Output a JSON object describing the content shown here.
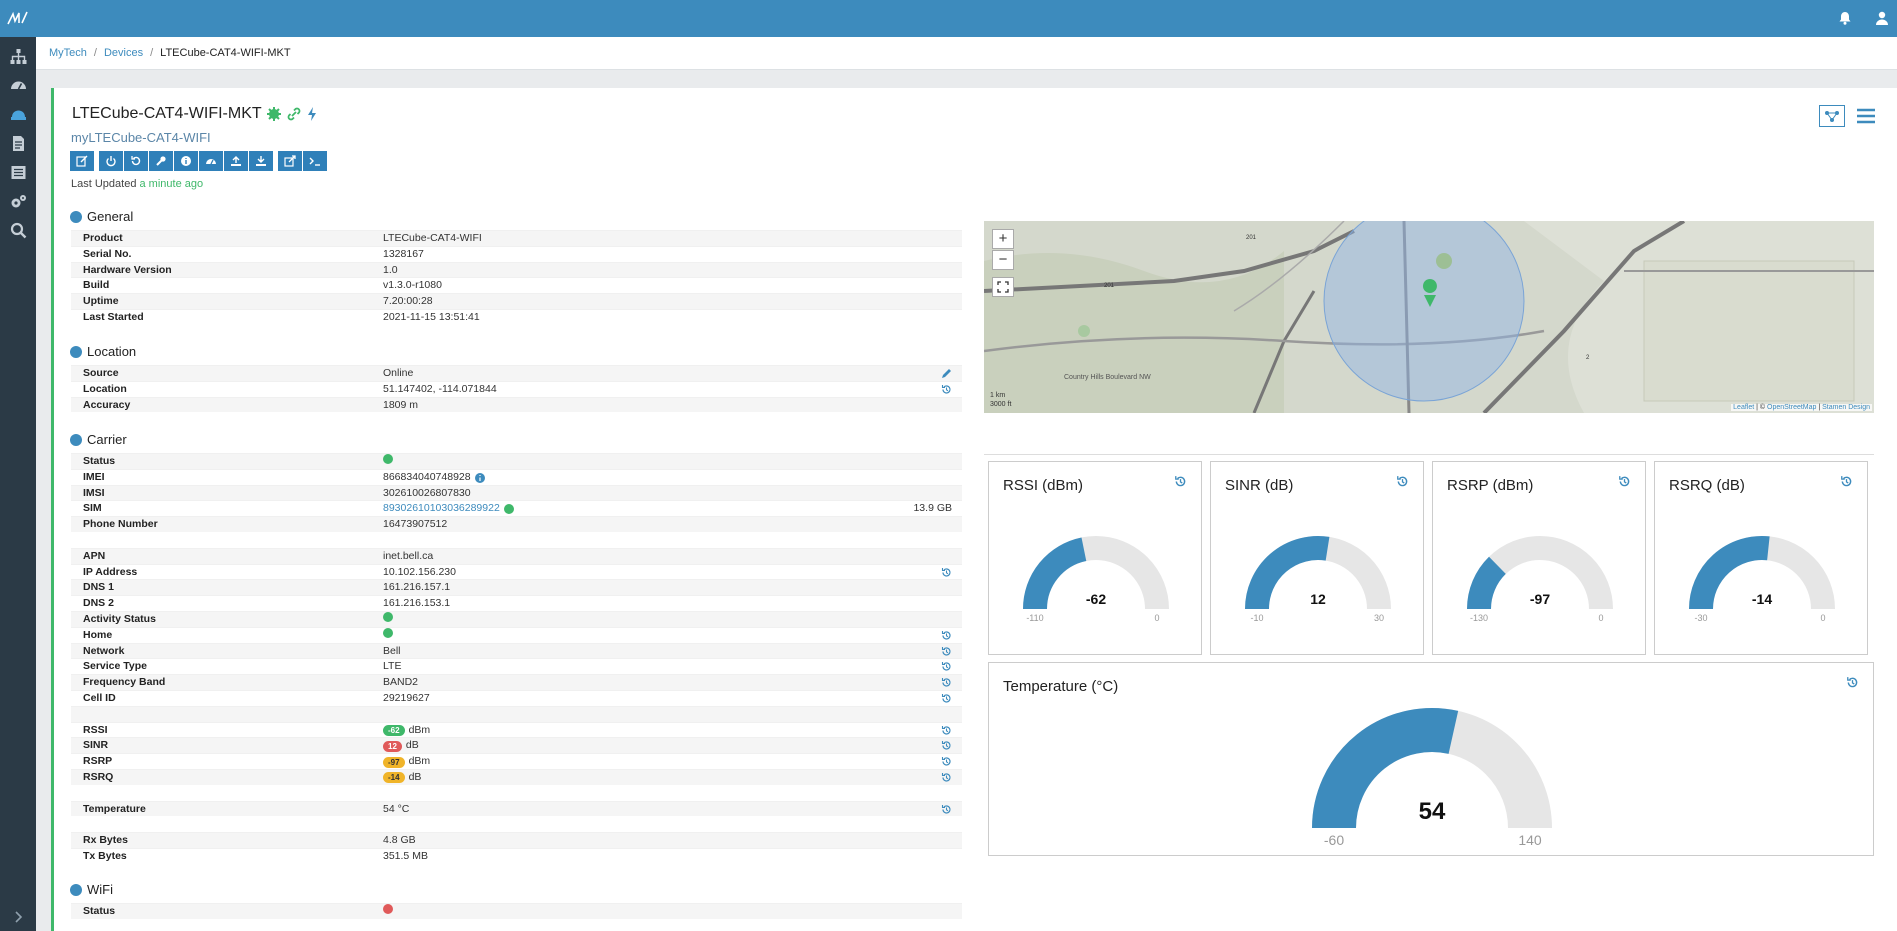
{
  "colors": {
    "accent": "#3d8bbd",
    "sidebar": "#2b3a46",
    "ok": "#3fb86a",
    "bad": "#e05a5a",
    "warn": "#f0b429"
  },
  "breadcrumb": {
    "home": "MyTech",
    "devices": "Devices",
    "current": "LTECube-CAT4-WIFI-MKT",
    "separator": "/"
  },
  "device": {
    "name": "LTECube-CAT4-WIFI-MKT",
    "subtitle": "myLTECube-CAT4-WIFI",
    "last_updated_label": "Last Updated",
    "last_updated_value": "a minute ago"
  },
  "toolbar": {
    "icons": [
      "edit-icon",
      "power-icon",
      "reboot-icon",
      "wrench-icon",
      "info-icon",
      "speed-icon",
      "upload-icon",
      "download-icon",
      "external-link-icon",
      "terminal-icon"
    ]
  },
  "general": {
    "title": "General",
    "rows": [
      {
        "k": "Product",
        "v": "LTECube-CAT4-WIFI"
      },
      {
        "k": "Serial No.",
        "v": "1328167"
      },
      {
        "k": "Hardware Version",
        "v": "1.0"
      },
      {
        "k": "Build",
        "v": "v1.3.0-r1080"
      },
      {
        "k": "Uptime",
        "v": "7.20:00:28"
      },
      {
        "k": "Last Started",
        "v": "2021-11-15 13:51:41"
      }
    ]
  },
  "location": {
    "title": "Location",
    "source_k": "Source",
    "source_v": "Online",
    "loc_k": "Location",
    "loc_v": "51.147402, -114.071844",
    "acc_k": "Accuracy",
    "acc_v": "1809 m"
  },
  "carrier": {
    "title": "Carrier",
    "status_k": "Status",
    "imei_k": "IMEI",
    "imei_v": "866834040748928",
    "imsi_k": "IMSI",
    "imsi_v": "302610026807830",
    "sim_k": "SIM",
    "sim_v": "89302610103036289922",
    "sim_usage": "13.9 GB",
    "phone_k": "Phone Number",
    "phone_v": "16473907512",
    "apn_k": "APN",
    "apn_v": "inet.bell.ca",
    "ip_k": "IP Address",
    "ip_v": "10.102.156.230",
    "dns1_k": "DNS 1",
    "dns1_v": "161.216.157.1",
    "dns2_k": "DNS 2",
    "dns2_v": "161.216.153.1",
    "activity_k": "Activity Status",
    "home_k": "Home",
    "network_k": "Network",
    "network_v": "Bell",
    "service_k": "Service Type",
    "service_v": "LTE",
    "band_k": "Frequency Band",
    "band_v": "BAND2",
    "cell_k": "Cell ID",
    "cell_v": "29219627",
    "rssi_k": "RSSI",
    "rssi_v": "-62",
    "rssi_u": "dBm",
    "sinr_k": "SINR",
    "sinr_v": "12",
    "sinr_u": "dB",
    "rsrp_k": "RSRP",
    "rsrp_v": "-97",
    "rsrp_u": "dBm",
    "rsrq_k": "RSRQ",
    "rsrq_v": "-14",
    "rsrq_u": "dB",
    "temp_k": "Temperature",
    "temp_v": "54 °C",
    "rx_k": "Rx Bytes",
    "rx_v": "4.8 GB",
    "tx_k": "Tx Bytes",
    "tx_v": "351.5 MB"
  },
  "wifi": {
    "title": "WiFi",
    "status_k": "Status"
  },
  "map": {
    "zoom_in": "+",
    "zoom_out": "−",
    "attribution_leaflet": "Leaflet",
    "attribution_sep1": " | © ",
    "attribution_osm": "OpenStreetMap",
    "attribution_sep2": " | ",
    "attribution_stamen": "Stamen Design",
    "scale_km": "1 km",
    "scale_ft": "3000 ft",
    "road_labels": [
      "201",
      "201",
      "2"
    ],
    "street_label": "Country Hills Boulevard NW"
  },
  "gauges": [
    {
      "title": "RSSI (dBm)",
      "value": -62,
      "min": -110,
      "max": 0
    },
    {
      "title": "SINR (dB)",
      "value": 12,
      "min": -10,
      "max": 30
    },
    {
      "title": "RSRP (dBm)",
      "value": -97,
      "min": -130,
      "max": 0
    },
    {
      "title": "RSRQ (dB)",
      "value": -14,
      "min": -30,
      "max": 0
    },
    {
      "title": "Temperature (°C)",
      "value": 54,
      "min": -60,
      "max": 140
    }
  ]
}
